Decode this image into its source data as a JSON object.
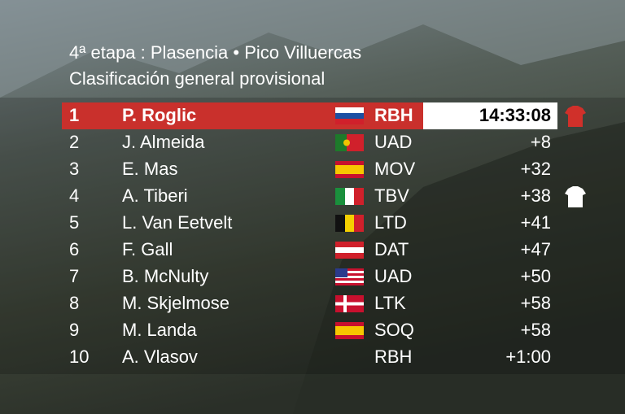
{
  "header": {
    "stage": "4ª etapa : Plasencia • Pico Villuercas",
    "subtitle": "Clasificación general provisional"
  },
  "table": {
    "rows": [
      {
        "rank": 1,
        "name": "P. Roglic",
        "team": "RBH",
        "time": "14:33:08"
      },
      {
        "rank": 2,
        "name": "J. Almeida",
        "team": "UAD",
        "time": "+8"
      },
      {
        "rank": 3,
        "name": "E. Mas",
        "team": "MOV",
        "time": "+32"
      },
      {
        "rank": 4,
        "name": "A. Tiberi",
        "team": "TBV",
        "time": "+38"
      },
      {
        "rank": 5,
        "name": "L. Van Eetvelt",
        "team": "LTD",
        "time": "+41"
      },
      {
        "rank": 6,
        "name": "F. Gall",
        "team": "DAT",
        "time": "+47"
      },
      {
        "rank": 7,
        "name": "B. McNulty",
        "team": "UAD",
        "time": "+50"
      },
      {
        "rank": 8,
        "name": "M. Skjelmose",
        "team": "LTK",
        "time": "+58"
      },
      {
        "rank": 9,
        "name": "M. Landa",
        "team": "SOQ",
        "time": "+58"
      },
      {
        "rank": 10,
        "name": "A. Vlasov",
        "team": "RBH",
        "time": "+1:00"
      }
    ]
  }
}
